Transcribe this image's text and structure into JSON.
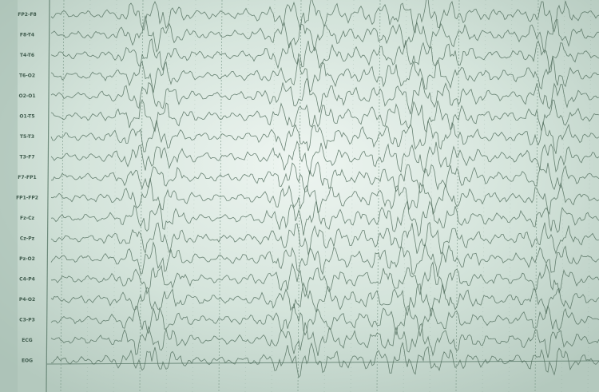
{
  "channels": [
    "FP2-F8",
    "F8-T4",
    "T4-T6",
    "T6-O2",
    "O2-O1",
    "O1-T5",
    "T5-T3",
    "T3-F7",
    "F7-FP1",
    "FP1-FP2",
    "Fz-Cz",
    "Cz-Pz",
    "Pz-O2",
    "C4-P4",
    "P4-O2",
    "C3-P3",
    "ECG",
    "EOG"
  ]
}
